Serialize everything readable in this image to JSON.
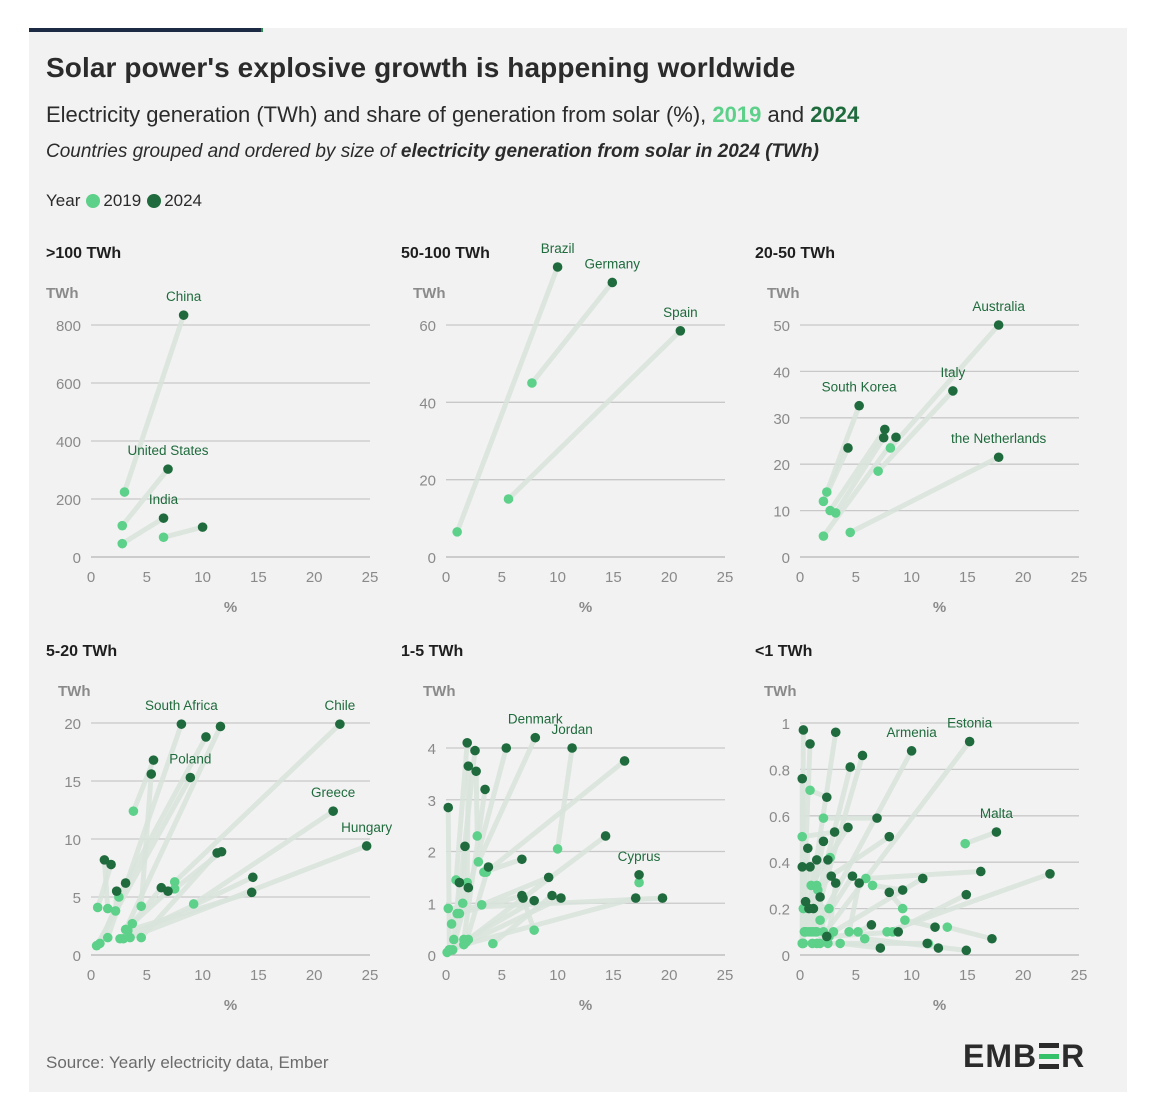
{
  "header": {
    "title": "Solar power's explosive growth is happening worldwide",
    "subtitle_pre": "Electricity generation (TWh) and share of generation from solar (%), ",
    "subtitle_y1": "2019",
    "subtitle_and": " and ",
    "subtitle_y2": "2024",
    "note_pre": "Countries grouped and ordered by size of ",
    "note_bold": "electricity generation from solar in 2024 (TWh)"
  },
  "legend": {
    "label": "Year",
    "items": [
      "2019",
      "2024"
    ]
  },
  "colors": {
    "y2019": "#5dd08a",
    "y2024": "#1f6b3d",
    "link": "#d9e4dc",
    "grid": "#c8c8c8",
    "axis_text": "#8a8a8a",
    "label_text": "#1f6b3d"
  },
  "footer": {
    "source": "Source: Yearly electricity data, Ember",
    "logo_left": "EMB",
    "logo_right": "R"
  },
  "chart_data": [
    {
      "type": "scatter",
      "title": ">100 TWh",
      "ylabel": "TWh",
      "xlabel": "%",
      "xlim": [
        0,
        25
      ],
      "ylim": [
        0,
        900
      ],
      "xticks": [
        0,
        5,
        10,
        15,
        20,
        25
      ],
      "yticks": [
        0,
        200,
        400,
        600,
        800
      ],
      "series": [
        {
          "name": "China",
          "labeled": true,
          "x19": 3.0,
          "y19": 224,
          "x24": 8.3,
          "y24": 834
        },
        {
          "name": "United States",
          "labeled": true,
          "x19": 2.8,
          "y19": 108,
          "x24": 6.9,
          "y24": 303
        },
        {
          "name": "India",
          "labeled": true,
          "x19": 2.8,
          "y19": 46,
          "x24": 6.5,
          "y24": 134
        },
        {
          "name": "",
          "labeled": false,
          "x19": 6.5,
          "y19": 68,
          "x24": 10.0,
          "y24": 103
        }
      ]
    },
    {
      "type": "scatter",
      "title": "50-100 TWh",
      "ylabel": "TWh",
      "xlabel": "%",
      "xlim": [
        0,
        25
      ],
      "ylim": [
        0,
        80
      ],
      "xticks": [
        0,
        5,
        10,
        15,
        20,
        25
      ],
      "yticks": [
        0,
        20,
        40,
        60
      ],
      "series": [
        {
          "name": "Brazil",
          "labeled": true,
          "x19": 1.0,
          "y19": 6.5,
          "x24": 10.0,
          "y24": 75
        },
        {
          "name": "Germany",
          "labeled": true,
          "x19": 7.7,
          "y19": 45,
          "x24": 14.9,
          "y24": 71
        },
        {
          "name": "Spain",
          "labeled": true,
          "x19": 5.6,
          "y19": 15,
          "x24": 21.0,
          "y24": 58.5
        }
      ]
    },
    {
      "type": "scatter",
      "title": "20-50 TWh",
      "ylabel": "TWh",
      "xlabel": "%",
      "xlim": [
        0,
        25
      ],
      "ylim": [
        0,
        55
      ],
      "xticks": [
        0,
        5,
        10,
        15,
        20,
        25
      ],
      "yticks": [
        0,
        10,
        20,
        30,
        40,
        50
      ],
      "series": [
        {
          "name": "Australia",
          "labeled": true,
          "x19": 8.1,
          "y19": 23.5,
          "x24": 17.8,
          "y24": 50
        },
        {
          "name": "South Korea",
          "labeled": true,
          "x19": 2.4,
          "y19": 14,
          "x24": 5.3,
          "y24": 32.6
        },
        {
          "name": "Italy",
          "labeled": true,
          "x19": 7.0,
          "y19": 18.5,
          "x24": 13.7,
          "y24": 35.8
        },
        {
          "name": "the Netherlands",
          "labeled": true,
          "x19": 4.5,
          "y19": 5.3,
          "x24": 17.8,
          "y24": 21.5
        },
        {
          "name": "",
          "labeled": false,
          "x19": 2.1,
          "y19": 12,
          "x24": 4.3,
          "y24": 23.5
        },
        {
          "name": "",
          "labeled": false,
          "x19": 2.7,
          "y19": 10,
          "x24": 7.6,
          "y24": 27.5
        },
        {
          "name": "",
          "labeled": false,
          "x19": 3.2,
          "y19": 9.5,
          "x24": 7.5,
          "y24": 25.7
        },
        {
          "name": "",
          "labeled": false,
          "x19": 2.1,
          "y19": 4.5,
          "x24": 8.6,
          "y24": 25.8
        }
      ]
    },
    {
      "type": "scatter",
      "title": "5-20 TWh",
      "ylabel": "TWh",
      "xlabel": "%",
      "xlim": [
        0,
        25
      ],
      "ylim": [
        0,
        21
      ],
      "xticks": [
        0,
        5,
        10,
        15,
        20,
        25
      ],
      "yticks": [
        0,
        5,
        10,
        15,
        20
      ],
      "series": [
        {
          "name": "South Africa",
          "labeled": true,
          "x19": 1.5,
          "y19": 1.5,
          "x24": 8.1,
          "y24": 19.9
        },
        {
          "name": "Chile",
          "labeled": true,
          "x19": 7.5,
          "y19": 6.3,
          "x24": 22.3,
          "y24": 19.9
        },
        {
          "name": "Poland",
          "labeled": true,
          "x19": 0.5,
          "y19": 0.8,
          "x24": 8.9,
          "y24": 15.3
        },
        {
          "name": "Greece",
          "labeled": true,
          "x19": 9.2,
          "y19": 4.4,
          "x24": 21.7,
          "y24": 12.4
        },
        {
          "name": "Hungary",
          "labeled": true,
          "x19": 3.5,
          "y19": 1.5,
          "x24": 24.7,
          "y24": 9.4
        },
        {
          "name": "",
          "labeled": false,
          "x19": 3.8,
          "y19": 12.4,
          "x24": 5.6,
          "y24": 16.8
        },
        {
          "name": "",
          "labeled": false,
          "x19": 4.5,
          "y19": 4.2,
          "x24": 5.4,
          "y24": 15.6
        },
        {
          "name": "",
          "labeled": false,
          "x19": 2.5,
          "y19": 5.0,
          "x24": 10.3,
          "y24": 18.8
        },
        {
          "name": "",
          "labeled": false,
          "x19": 3.1,
          "y19": 2.2,
          "x24": 11.6,
          "y24": 19.7
        },
        {
          "name": "",
          "labeled": false,
          "x19": 1.5,
          "y19": 4.0,
          "x24": 1.2,
          "y24": 8.2
        },
        {
          "name": "",
          "labeled": false,
          "x19": 0.6,
          "y19": 4.1,
          "x24": 1.8,
          "y24": 7.8
        },
        {
          "name": "",
          "labeled": false,
          "x19": 0.8,
          "y19": 1.0,
          "x24": 3.1,
          "y24": 6.2
        },
        {
          "name": "",
          "labeled": false,
          "x19": 2.2,
          "y19": 3.8,
          "x24": 2.3,
          "y24": 5.5
        },
        {
          "name": "",
          "labeled": false,
          "x19": 2.6,
          "y19": 1.4,
          "x24": 6.3,
          "y24": 5.8
        },
        {
          "name": "",
          "labeled": false,
          "x19": 3.7,
          "y19": 2.7,
          "x24": 6.9,
          "y24": 5.5
        },
        {
          "name": "",
          "labeled": false,
          "x19": 4.5,
          "y19": 1.5,
          "x24": 11.3,
          "y24": 8.8
        },
        {
          "name": "",
          "labeled": false,
          "x19": 7.5,
          "y19": 5.7,
          "x24": 11.7,
          "y24": 8.9
        },
        {
          "name": "",
          "labeled": false,
          "x19": 2.9,
          "y19": 1.4,
          "x24": 14.5,
          "y24": 6.7
        },
        {
          "name": "",
          "labeled": false,
          "x19": 3.3,
          "y19": 2.1,
          "x24": 14.4,
          "y24": 5.4
        }
      ]
    },
    {
      "type": "scatter",
      "title": "1-5 TWh",
      "ylabel": "TWh",
      "xlabel": "%",
      "xlim": [
        0,
        25
      ],
      "ylim": [
        0,
        4.3
      ],
      "xticks": [
        0,
        5,
        10,
        15,
        20,
        25
      ],
      "yticks": [
        0,
        1,
        2,
        3,
        4
      ],
      "series": [
        {
          "name": "Denmark",
          "labeled": true,
          "x19": 2.9,
          "y19": 1.8,
          "x24": 8.0,
          "y24": 4.2
        },
        {
          "name": "Jordan",
          "labeled": true,
          "x19": 10.0,
          "y19": 2.05,
          "x24": 11.3,
          "y24": 4.0
        },
        {
          "name": "",
          "labeled": false,
          "x19": 3.6,
          "y19": 1.6,
          "x24": 16.0,
          "y24": 3.75
        },
        {
          "name": "",
          "labeled": false,
          "x19": 2.0,
          "y19": 0.3,
          "x24": 14.3,
          "y24": 2.3
        },
        {
          "name": "Cyprus",
          "labeled": true,
          "x19": 17.3,
          "y19": 1.4,
          "x24": 17.3,
          "y24": 1.55
        },
        {
          "name": "",
          "labeled": false,
          "x19": 0.2,
          "y19": 0.9,
          "x24": 19.4,
          "y24": 1.1
        },
        {
          "name": "",
          "labeled": false,
          "x19": 1.6,
          "y19": 0.2,
          "x24": 17.0,
          "y24": 1.1
        },
        {
          "name": "",
          "labeled": false,
          "x19": 0.9,
          "y19": 1.45,
          "x24": 1.9,
          "y24": 4.1
        },
        {
          "name": "",
          "labeled": false,
          "x19": 1.0,
          "y19": 0.8,
          "x24": 2.6,
          "y24": 3.95
        },
        {
          "name": "",
          "labeled": false,
          "x19": 0.6,
          "y19": 0.1,
          "x24": 5.4,
          "y24": 4.0
        },
        {
          "name": "",
          "labeled": false,
          "x19": 1.9,
          "y19": 1.4,
          "x24": 2.0,
          "y24": 3.65
        },
        {
          "name": "",
          "labeled": false,
          "x19": 2.8,
          "y19": 2.3,
          "x24": 2.7,
          "y24": 3.55
        },
        {
          "name": "",
          "labeled": false,
          "x19": 1.6,
          "y19": 0.3,
          "x24": 3.5,
          "y24": 3.2
        },
        {
          "name": "",
          "labeled": false,
          "x19": 0.3,
          "y19": 0.1,
          "x24": 0.2,
          "y24": 2.85
        },
        {
          "name": "",
          "labeled": false,
          "x19": 1.5,
          "y19": 1.0,
          "x24": 1.7,
          "y24": 2.1
        },
        {
          "name": "",
          "labeled": false,
          "x19": 3.4,
          "y19": 1.6,
          "x24": 6.8,
          "y24": 1.85
        },
        {
          "name": "",
          "labeled": false,
          "x19": 1.8,
          "y19": 0.25,
          "x24": 3.8,
          "y24": 1.7
        },
        {
          "name": "",
          "labeled": false,
          "x19": 3.2,
          "y19": 0.97,
          "x24": 9.2,
          "y24": 1.5
        },
        {
          "name": "",
          "labeled": false,
          "x19": 0.5,
          "y19": 0.6,
          "x24": 2.0,
          "y24": 1.3
        },
        {
          "name": "",
          "labeled": false,
          "x19": 0.7,
          "y19": 0.3,
          "x24": 1.2,
          "y24": 1.4
        },
        {
          "name": "",
          "labeled": false,
          "x19": 1.2,
          "y19": 0.8,
          "x24": 6.8,
          "y24": 1.15
        },
        {
          "name": "",
          "labeled": false,
          "x19": 4.2,
          "y19": 0.22,
          "x24": 9.5,
          "y24": 1.15
        },
        {
          "name": "",
          "labeled": false,
          "x19": 7.9,
          "y19": 0.48,
          "x24": 6.9,
          "y24": 1.1
        },
        {
          "name": "",
          "labeled": false,
          "x19": 0.3,
          "y19": 0.1,
          "x24": 7.9,
          "y24": 1.05
        },
        {
          "name": "",
          "labeled": false,
          "x19": 0.1,
          "y19": 0.05,
          "x24": 10.3,
          "y24": 1.1
        }
      ]
    },
    {
      "type": "scatter",
      "title": "<1 TWh",
      "ylabel": "TWh",
      "xlabel": "%",
      "xlim": [
        0,
        25
      ],
      "ylim": [
        0,
        1.03
      ],
      "xticks": [
        0,
        5,
        10,
        15,
        20,
        25
      ],
      "yticks": [
        0,
        0.2,
        0.4,
        0.6,
        0.8,
        1
      ],
      "series": [
        {
          "name": "Armenia",
          "labeled": true,
          "x19": 1.8,
          "y19": 0.15,
          "x24": 10.0,
          "y24": 0.88
        },
        {
          "name": "Estonia",
          "labeled": true,
          "x19": 1.5,
          "y19": 0.05,
          "x24": 15.2,
          "y24": 0.92
        },
        {
          "name": "Malta",
          "labeled": true,
          "x19": 14.8,
          "y19": 0.48,
          "x24": 17.6,
          "y24": 0.53
        },
        {
          "name": "",
          "labeled": false,
          "x19": 0.2,
          "y19": 0.05,
          "x24": 0.3,
          "y24": 0.97
        },
        {
          "name": "",
          "labeled": false,
          "x19": 0.5,
          "y19": 0.1,
          "x24": 3.2,
          "y24": 0.96
        },
        {
          "name": "",
          "labeled": false,
          "x19": 0.3,
          "y19": 0.2,
          "x24": 0.9,
          "y24": 0.91
        },
        {
          "name": "",
          "labeled": false,
          "x19": 1.0,
          "y19": 0.1,
          "x24": 5.6,
          "y24": 0.86
        },
        {
          "name": "",
          "labeled": false,
          "x19": 0.8,
          "y19": 0.1,
          "x24": 4.5,
          "y24": 0.81
        },
        {
          "name": "",
          "labeled": false,
          "x19": 0.2,
          "y19": 0.05,
          "x24": 0.2,
          "y24": 0.76
        },
        {
          "name": "",
          "labeled": false,
          "x19": 0.9,
          "y19": 0.71,
          "x24": 2.4,
          "y24": 0.68
        },
        {
          "name": "",
          "labeled": false,
          "x19": 2.1,
          "y19": 0.59,
          "x24": 6.9,
          "y24": 0.59
        },
        {
          "name": "",
          "labeled": false,
          "x19": 1.0,
          "y19": 0.3,
          "x24": 4.3,
          "y24": 0.55
        },
        {
          "name": "",
          "labeled": false,
          "x19": 0.2,
          "y19": 0.51,
          "x24": 3.1,
          "y24": 0.53
        },
        {
          "name": "",
          "labeled": false,
          "x19": 1.5,
          "y19": 0.3,
          "x24": 8.0,
          "y24": 0.51
        },
        {
          "name": "",
          "labeled": false,
          "x19": 0.5,
          "y19": 0.1,
          "x24": 2.1,
          "y24": 0.49
        },
        {
          "name": "",
          "labeled": false,
          "x19": 0.4,
          "y19": 0.1,
          "x24": 0.7,
          "y24": 0.46
        },
        {
          "name": "",
          "labeled": false,
          "x19": 2.7,
          "y19": 0.42,
          "x24": 2.5,
          "y24": 0.41
        },
        {
          "name": "",
          "labeled": false,
          "x19": 0.4,
          "y19": 0.1,
          "x24": 1.5,
          "y24": 0.41
        },
        {
          "name": "",
          "labeled": false,
          "x19": 0.3,
          "y19": 0.05,
          "x24": 0.2,
          "y24": 0.38
        },
        {
          "name": "",
          "labeled": false,
          "x19": 1.2,
          "y19": 0.1,
          "x24": 0.9,
          "y24": 0.38
        },
        {
          "name": "",
          "labeled": false,
          "x19": 5.9,
          "y19": 0.33,
          "x24": 16.2,
          "y24": 0.36
        },
        {
          "name": "",
          "labeled": false,
          "x19": 7.8,
          "y19": 0.1,
          "x24": 22.4,
          "y24": 0.35
        },
        {
          "name": "",
          "labeled": false,
          "x19": 3.0,
          "y19": 0.1,
          "x24": 11.0,
          "y24": 0.33
        },
        {
          "name": "",
          "labeled": false,
          "x19": 1.6,
          "y19": 0.28,
          "x24": 2.8,
          "y24": 0.34
        },
        {
          "name": "",
          "labeled": false,
          "x19": 1.5,
          "y19": 0.1,
          "x24": 4.7,
          "y24": 0.34
        },
        {
          "name": "",
          "labeled": false,
          "x19": 4.4,
          "y19": 0.1,
          "x24": 5.3,
          "y24": 0.31
        },
        {
          "name": "",
          "labeled": false,
          "x19": 2.5,
          "y19": 0.05,
          "x24": 3.2,
          "y24": 0.31
        },
        {
          "name": "",
          "labeled": false,
          "x19": 6.5,
          "y19": 0.3,
          "x24": 9.2,
          "y24": 0.28
        },
        {
          "name": "",
          "labeled": false,
          "x19": 8.3,
          "y19": 0.1,
          "x24": 14.9,
          "y24": 0.26
        },
        {
          "name": "",
          "labeled": false,
          "x19": 9.2,
          "y19": 0.2,
          "x24": 8.0,
          "y24": 0.27
        },
        {
          "name": "",
          "labeled": false,
          "x19": 2.1,
          "y19": 0.1,
          "x24": 1.8,
          "y24": 0.25
        },
        {
          "name": "",
          "labeled": false,
          "x19": 2.6,
          "y19": 0.2,
          "x24": 0.5,
          "y24": 0.23
        },
        {
          "name": "",
          "labeled": false,
          "x19": 1.4,
          "y19": 0.1,
          "x24": 1.2,
          "y24": 0.2
        },
        {
          "name": "",
          "labeled": false,
          "x19": 0.5,
          "y19": 0.1,
          "x24": 0.8,
          "y24": 0.2
        },
        {
          "name": "",
          "labeled": false,
          "x19": 9.4,
          "y19": 0.15,
          "x24": 12.1,
          "y24": 0.12
        },
        {
          "name": "",
          "labeled": false,
          "x19": 13.2,
          "y19": 0.12,
          "x24": 17.2,
          "y24": 0.07
        },
        {
          "name": "",
          "labeled": false,
          "x19": 11.5,
          "y19": 0.05,
          "x24": 12.4,
          "y24": 0.03
        },
        {
          "name": "",
          "labeled": false,
          "x19": 2.6,
          "y19": 0.08,
          "x24": 8.8,
          "y24": 0.1
        },
        {
          "name": "",
          "labeled": false,
          "x19": 5.2,
          "y19": 0.1,
          "x24": 6.4,
          "y24": 0.13
        },
        {
          "name": "",
          "labeled": false,
          "x19": 1.1,
          "y19": 0.05,
          "x24": 2.4,
          "y24": 0.08
        },
        {
          "name": "",
          "labeled": false,
          "x19": 3.6,
          "y19": 0.05,
          "x24": 7.2,
          "y24": 0.03
        },
        {
          "name": "",
          "labeled": false,
          "x19": 5.8,
          "y19": 0.07,
          "x24": 14.9,
          "y24": 0.02
        },
        {
          "name": "",
          "labeled": false,
          "x19": 1.8,
          "y19": 0.05,
          "x24": 11.4,
          "y24": 0.05
        }
      ]
    }
  ]
}
